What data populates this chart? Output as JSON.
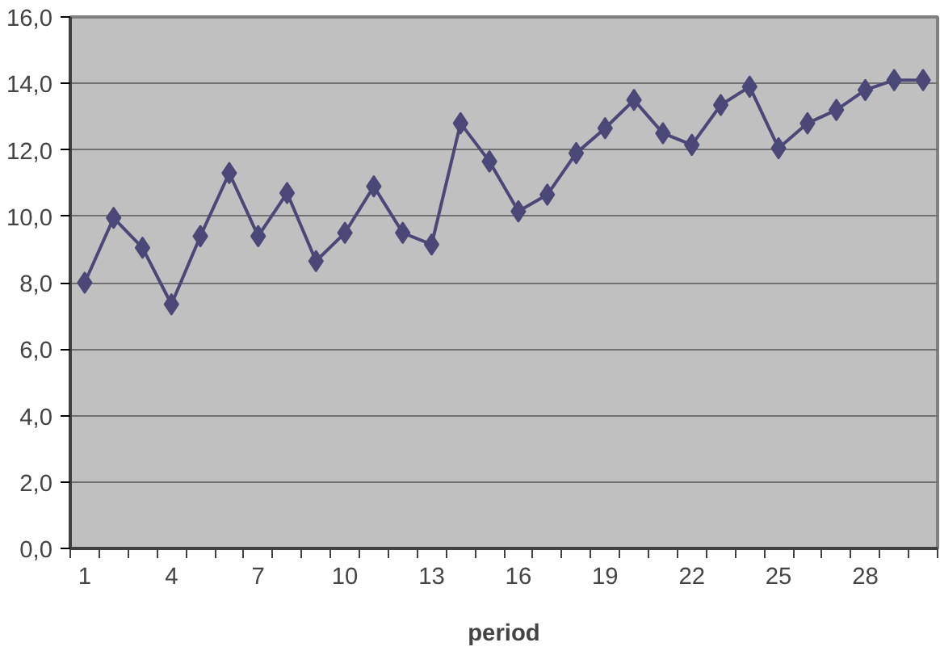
{
  "chart_data": {
    "type": "line",
    "xlabel": "period",
    "categories": [
      "1",
      null,
      null,
      "4",
      null,
      null,
      "7",
      null,
      null,
      "10",
      null,
      null,
      "13",
      null,
      null,
      "16",
      null,
      null,
      "19",
      null,
      null,
      "22",
      null,
      null,
      "25",
      null,
      null,
      "28",
      null,
      null
    ],
    "series": [
      {
        "color": "#4b4878",
        "values": [
          8.0,
          9.95,
          9.05,
          7.35,
          9.4,
          11.3,
          9.4,
          10.7,
          8.65,
          9.5,
          10.9,
          9.5,
          9.15,
          12.8,
          11.65,
          10.15,
          10.65,
          11.9,
          12.65,
          13.5,
          12.5,
          12.15,
          13.35,
          13.9,
          12.05,
          12.8,
          13.2,
          13.8,
          14.1,
          14.1
        ]
      }
    ],
    "ylim": [
      0,
      16
    ],
    "yticks": [
      {
        "value": 0,
        "label": "0,0"
      },
      {
        "value": 2,
        "label": "2,0"
      },
      {
        "value": 4,
        "label": "4,0"
      },
      {
        "value": 6,
        "label": "6,0"
      },
      {
        "value": 8,
        "label": "8,0"
      },
      {
        "value": 10,
        "label": "10,0"
      },
      {
        "value": 12,
        "label": "12,0"
      },
      {
        "value": 14,
        "label": "14,0"
      },
      {
        "value": 16,
        "label": "16,0"
      }
    ],
    "grid": "y",
    "marker": "diamond",
    "line_style": "solid"
  }
}
